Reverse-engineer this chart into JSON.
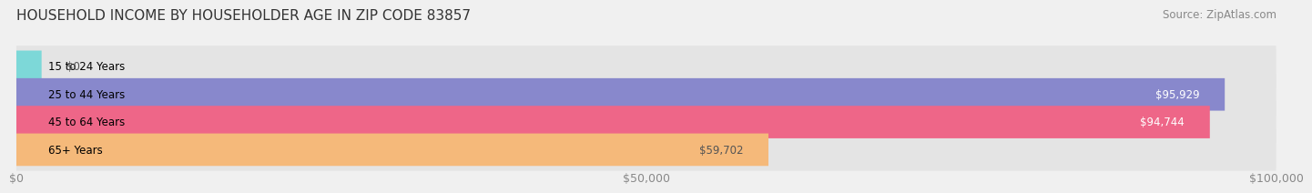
{
  "title": "HOUSEHOLD INCOME BY HOUSEHOLDER AGE IN ZIP CODE 83857",
  "source": "Source: ZipAtlas.com",
  "categories": [
    "15 to 24 Years",
    "25 to 44 Years",
    "45 to 64 Years",
    "65+ Years"
  ],
  "values": [
    0,
    95929,
    94744,
    59702
  ],
  "bar_colors": [
    "#7dd8d8",
    "#8888cc",
    "#ee6688",
    "#f5b97a"
  ],
  "label_colors": [
    "#555555",
    "#ffffff",
    "#ffffff",
    "#555555"
  ],
  "xlim": [
    0,
    100000
  ],
  "xticks": [
    0,
    50000,
    100000
  ],
  "xtick_labels": [
    "$0",
    "$50,000",
    "$100,000"
  ],
  "background_color": "#f0f0f0",
  "bar_bg_color": "#e4e4e4",
  "title_fontsize": 11,
  "source_fontsize": 8.5,
  "tick_fontsize": 9,
  "label_fontsize": 8.5,
  "cat_fontsize": 8.5
}
